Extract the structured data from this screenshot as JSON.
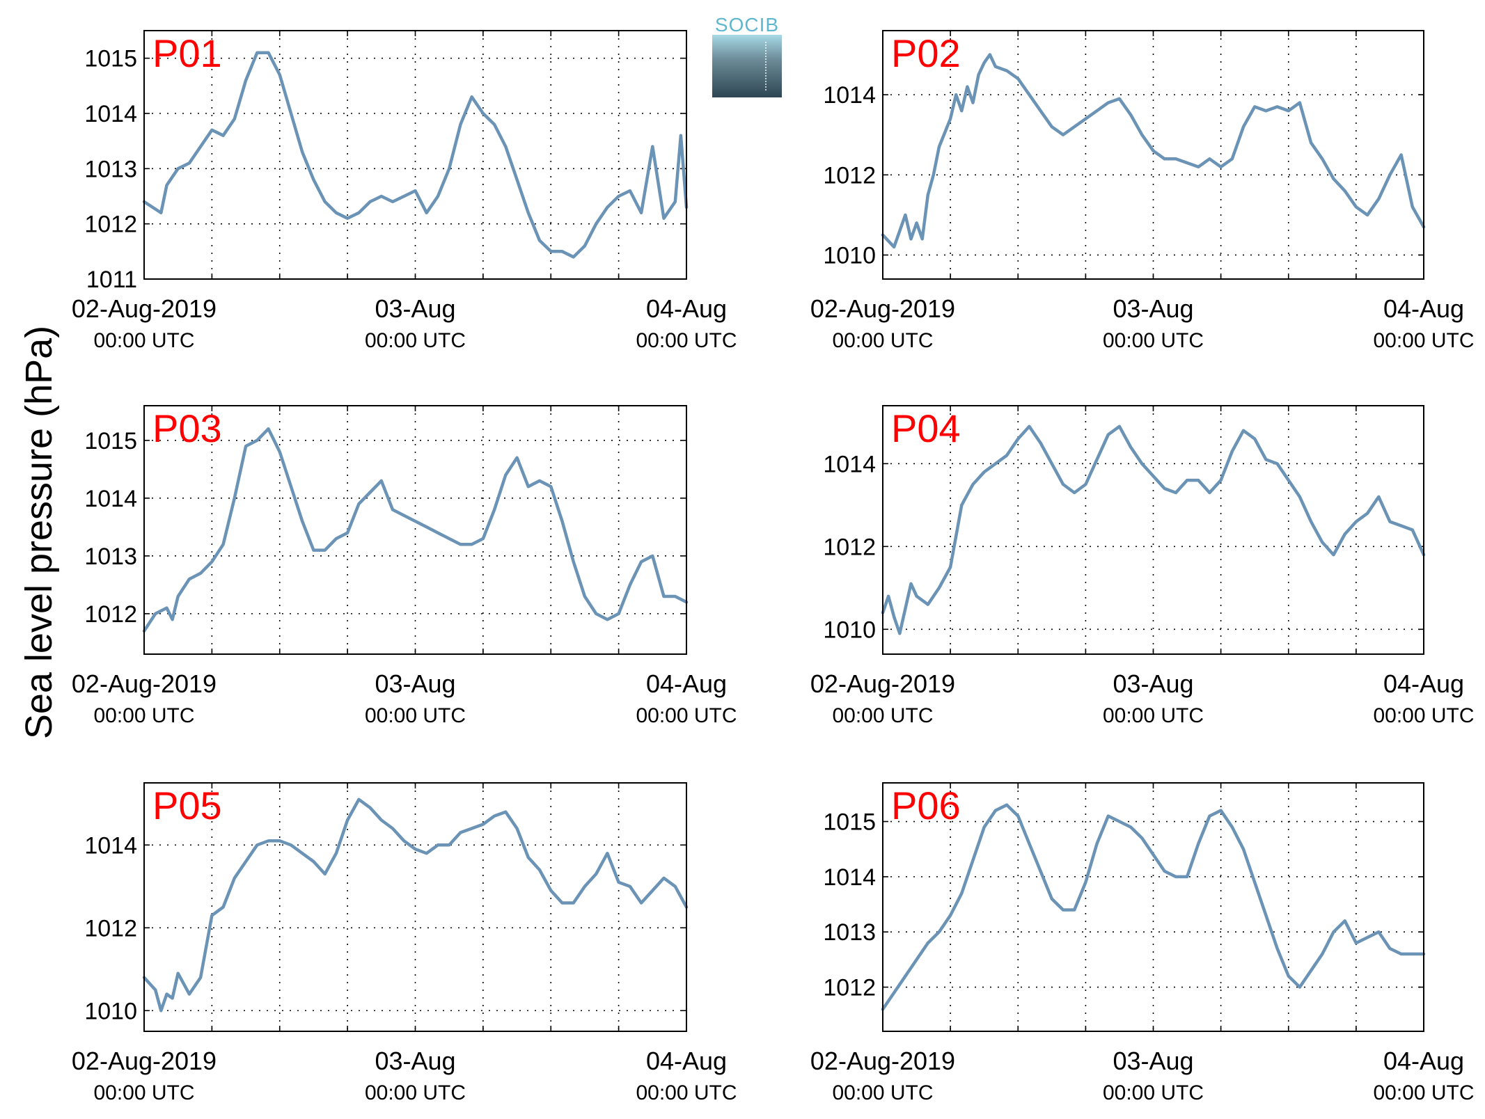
{
  "figure": {
    "ylabel": "Sea level pressure (hPa)",
    "logo_text": "SOCIB",
    "colors": {
      "line": "#6a93b6",
      "panel_label": "#ff0000",
      "axis": "#000000"
    }
  },
  "chart_data": [
    {
      "type": "line",
      "title": "P01",
      "xlim": [
        "02-Aug-2019 00:00",
        "04-Aug-2019 00:00"
      ],
      "xtick_labels": [
        [
          "02-Aug-2019",
          "00:00 UTC"
        ],
        [
          "03-Aug",
          "00:00 UTC"
        ],
        [
          "04-Aug",
          "00:00 UTC"
        ]
      ],
      "ylim": [
        1011,
        1015.5
      ],
      "yticks": [
        1011,
        1012,
        1013,
        1014,
        1015
      ],
      "grid": true,
      "series": [
        {
          "x_hours": [
            0,
            1.5,
            2,
            3,
            4,
            5,
            6,
            7,
            8,
            9,
            10,
            11,
            12,
            13,
            14,
            15,
            16,
            17,
            18,
            19,
            20,
            21,
            22,
            23,
            24,
            25,
            26,
            27,
            28,
            29,
            30,
            31,
            32,
            33,
            34,
            35,
            36,
            37,
            38,
            39,
            40,
            41,
            42,
            43,
            44,
            45,
            46,
            47,
            47.5,
            48
          ],
          "values": [
            1012.4,
            1012.2,
            1012.7,
            1013.0,
            1013.1,
            1013.4,
            1013.7,
            1013.6,
            1013.9,
            1014.6,
            1015.1,
            1015.1,
            1014.7,
            1014.0,
            1013.3,
            1012.8,
            1012.4,
            1012.2,
            1012.1,
            1012.2,
            1012.4,
            1012.5,
            1012.4,
            1012.5,
            1012.6,
            1012.2,
            1012.5,
            1013.0,
            1013.8,
            1014.3,
            1014.0,
            1013.8,
            1013.4,
            1012.8,
            1012.2,
            1011.7,
            1011.5,
            1011.5,
            1011.4,
            1011.6,
            1012.0,
            1012.3,
            1012.5,
            1012.6,
            1012.2,
            1013.4,
            1012.1,
            1012.4,
            1013.6,
            1012.3
          ]
        }
      ]
    },
    {
      "type": "line",
      "title": "P02",
      "xlim": [
        "02-Aug-2019 00:00",
        "04-Aug-2019 00:00"
      ],
      "xtick_labels": [
        [
          "02-Aug-2019",
          "00:00 UTC"
        ],
        [
          "03-Aug",
          "00:00 UTC"
        ],
        [
          "04-Aug",
          "00:00 UTC"
        ]
      ],
      "ylim": [
        1009.4,
        1015.6
      ],
      "yticks": [
        1010,
        1012,
        1014
      ],
      "grid": true,
      "series": [
        {
          "x_hours": [
            0,
            1,
            2,
            2.5,
            3,
            3.5,
            4,
            4.5,
            5,
            6,
            6.5,
            7,
            7.5,
            8,
            8.5,
            9,
            9.5,
            10,
            11,
            12,
            13,
            14,
            15,
            16,
            17,
            18,
            19,
            20,
            21,
            22,
            23,
            24,
            25,
            26,
            27,
            28,
            29,
            30,
            31,
            32,
            33,
            34,
            35,
            36,
            37,
            38,
            39,
            40,
            41,
            42,
            43,
            44,
            45,
            46,
            47,
            48
          ],
          "values": [
            1010.5,
            1010.2,
            1011.0,
            1010.4,
            1010.8,
            1010.4,
            1011.5,
            1012.0,
            1012.7,
            1013.4,
            1014.0,
            1013.6,
            1014.2,
            1013.8,
            1014.5,
            1014.8,
            1015.0,
            1014.7,
            1014.6,
            1014.4,
            1014.0,
            1013.6,
            1013.2,
            1013.0,
            1013.2,
            1013.4,
            1013.6,
            1013.8,
            1013.9,
            1013.5,
            1013.0,
            1012.6,
            1012.4,
            1012.4,
            1012.3,
            1012.2,
            1012.4,
            1012.2,
            1012.4,
            1013.2,
            1013.7,
            1013.6,
            1013.7,
            1013.6,
            1013.8,
            1012.8,
            1012.4,
            1011.9,
            1011.6,
            1011.2,
            1011.0,
            1011.4,
            1012.0,
            1012.5,
            1011.2,
            1010.7
          ]
        }
      ]
    },
    {
      "type": "line",
      "title": "P03",
      "xlim": [
        "02-Aug-2019 00:00",
        "04-Aug-2019 00:00"
      ],
      "xtick_labels": [
        [
          "02-Aug-2019",
          "00:00 UTC"
        ],
        [
          "03-Aug",
          "00:00 UTC"
        ],
        [
          "04-Aug",
          "00:00 UTC"
        ]
      ],
      "ylim": [
        1011.3,
        1015.6
      ],
      "yticks": [
        1012,
        1013,
        1014,
        1015
      ],
      "grid": true,
      "series": [
        {
          "x_hours": [
            0,
            1,
            2,
            2.5,
            3,
            4,
            5,
            6,
            7,
            8,
            9,
            10,
            11,
            12,
            13,
            14,
            15,
            16,
            17,
            18,
            19,
            20,
            21,
            22,
            23,
            24,
            25,
            26,
            27,
            28,
            29,
            30,
            31,
            32,
            33,
            34,
            35,
            36,
            37,
            38,
            39,
            40,
            41,
            42,
            43,
            44,
            45,
            46,
            47,
            48
          ],
          "values": [
            1011.7,
            1012.0,
            1012.1,
            1011.9,
            1012.3,
            1012.6,
            1012.7,
            1012.9,
            1013.2,
            1014.0,
            1014.9,
            1015.0,
            1015.2,
            1014.8,
            1014.2,
            1013.6,
            1013.1,
            1013.1,
            1013.3,
            1013.4,
            1013.9,
            1014.1,
            1014.3,
            1013.8,
            1013.7,
            1013.6,
            1013.5,
            1013.4,
            1013.3,
            1013.2,
            1013.2,
            1013.3,
            1013.8,
            1014.4,
            1014.7,
            1014.2,
            1014.3,
            1014.2,
            1013.6,
            1012.9,
            1012.3,
            1012.0,
            1011.9,
            1012.0,
            1012.5,
            1012.9,
            1013.0,
            1012.3,
            1012.3,
            1012.2
          ]
        }
      ]
    },
    {
      "type": "line",
      "title": "P04",
      "xlim": [
        "02-Aug-2019 00:00",
        "04-Aug-2019 00:00"
      ],
      "xtick_labels": [
        [
          "02-Aug-2019",
          "00:00 UTC"
        ],
        [
          "03-Aug",
          "00:00 UTC"
        ],
        [
          "04-Aug",
          "00:00 UTC"
        ]
      ],
      "ylim": [
        1009.4,
        1015.4
      ],
      "yticks": [
        1010,
        1012,
        1014
      ],
      "grid": true,
      "series": [
        {
          "x_hours": [
            0,
            0.5,
            1,
            1.5,
            2,
            2.5,
            3,
            4,
            5,
            6,
            7,
            8,
            9,
            10,
            11,
            12,
            13,
            14,
            15,
            16,
            17,
            18,
            19,
            20,
            21,
            22,
            23,
            24,
            25,
            26,
            27,
            28,
            29,
            30,
            31,
            32,
            33,
            34,
            35,
            36,
            37,
            38,
            39,
            40,
            41,
            42,
            43,
            44,
            45,
            46,
            47,
            48
          ],
          "values": [
            1010.4,
            1010.8,
            1010.3,
            1009.9,
            1010.5,
            1011.1,
            1010.8,
            1010.6,
            1011.0,
            1011.5,
            1013.0,
            1013.5,
            1013.8,
            1014.0,
            1014.2,
            1014.6,
            1014.9,
            1014.5,
            1014.0,
            1013.5,
            1013.3,
            1013.5,
            1014.1,
            1014.7,
            1014.9,
            1014.4,
            1014.0,
            1013.7,
            1013.4,
            1013.3,
            1013.6,
            1013.6,
            1013.3,
            1013.6,
            1014.3,
            1014.8,
            1014.6,
            1014.1,
            1014.0,
            1013.6,
            1013.2,
            1012.6,
            1012.1,
            1011.8,
            1012.3,
            1012.6,
            1012.8,
            1013.2,
            1012.6,
            1012.5,
            1012.4,
            1011.8
          ]
        }
      ]
    },
    {
      "type": "line",
      "title": "P05",
      "xlim": [
        "02-Aug-2019 00:00",
        "04-Aug-2019 00:00"
      ],
      "xtick_labels": [
        [
          "02-Aug-2019",
          "00:00 UTC"
        ],
        [
          "03-Aug",
          "00:00 UTC"
        ],
        [
          "04-Aug",
          "00:00 UTC"
        ]
      ],
      "ylim": [
        1009.5,
        1015.5
      ],
      "yticks": [
        1010,
        1012,
        1014
      ],
      "grid": true,
      "series": [
        {
          "x_hours": [
            0,
            1,
            1.5,
            2,
            2.5,
            3,
            4,
            5,
            6,
            7,
            8,
            9,
            10,
            11,
            12,
            13,
            14,
            15,
            16,
            17,
            18,
            19,
            20,
            21,
            22,
            23,
            24,
            25,
            26,
            27,
            28,
            29,
            30,
            31,
            32,
            33,
            34,
            35,
            36,
            37,
            38,
            39,
            40,
            41,
            42,
            43,
            44,
            45,
            46,
            47,
            48
          ],
          "values": [
            1010.8,
            1010.5,
            1010.0,
            1010.4,
            1010.3,
            1010.9,
            1010.4,
            1010.8,
            1012.3,
            1012.5,
            1013.2,
            1013.6,
            1014.0,
            1014.1,
            1014.1,
            1014.0,
            1013.8,
            1013.6,
            1013.3,
            1013.8,
            1014.6,
            1015.1,
            1014.9,
            1014.6,
            1014.4,
            1014.1,
            1013.9,
            1013.8,
            1014.0,
            1014.0,
            1014.3,
            1014.4,
            1014.5,
            1014.7,
            1014.8,
            1014.4,
            1013.7,
            1013.4,
            1012.9,
            1012.6,
            1012.6,
            1013.0,
            1013.3,
            1013.8,
            1013.1,
            1013.0,
            1012.6,
            1012.9,
            1013.2,
            1013.0,
            1012.5
          ]
        }
      ]
    },
    {
      "type": "line",
      "title": "P06",
      "xlim": [
        "02-Aug-2019 00:00",
        "04-Aug-2019 00:00"
      ],
      "xtick_labels": [
        [
          "02-Aug-2019",
          "00:00 UTC"
        ],
        [
          "03-Aug",
          "00:00 UTC"
        ],
        [
          "04-Aug",
          "00:00 UTC"
        ]
      ],
      "ylim": [
        1011.2,
        1015.7
      ],
      "yticks": [
        1012,
        1013,
        1014,
        1015
      ],
      "grid": true,
      "series": [
        {
          "x_hours": [
            0,
            1,
            2,
            3,
            4,
            5,
            6,
            7,
            8,
            9,
            10,
            11,
            12,
            13,
            14,
            15,
            16,
            17,
            18,
            19,
            20,
            21,
            22,
            23,
            24,
            25,
            26,
            27,
            28,
            29,
            30,
            31,
            32,
            33,
            34,
            35,
            36,
            37,
            38,
            39,
            40,
            41,
            42,
            43,
            44,
            45,
            46,
            47,
            48
          ],
          "values": [
            1011.6,
            1011.9,
            1012.2,
            1012.5,
            1012.8,
            1013.0,
            1013.3,
            1013.7,
            1014.3,
            1014.9,
            1015.2,
            1015.3,
            1015.1,
            1014.6,
            1014.1,
            1013.6,
            1013.4,
            1013.4,
            1013.9,
            1014.6,
            1015.1,
            1015.0,
            1014.9,
            1014.7,
            1014.4,
            1014.1,
            1014.0,
            1014.0,
            1014.6,
            1015.1,
            1015.2,
            1014.9,
            1014.5,
            1013.9,
            1013.3,
            1012.7,
            1012.2,
            1012.0,
            1012.3,
            1012.6,
            1013.0,
            1013.2,
            1012.8,
            1012.9,
            1013.0,
            1012.7,
            1012.6,
            1012.6,
            1012.6
          ]
        }
      ]
    }
  ]
}
